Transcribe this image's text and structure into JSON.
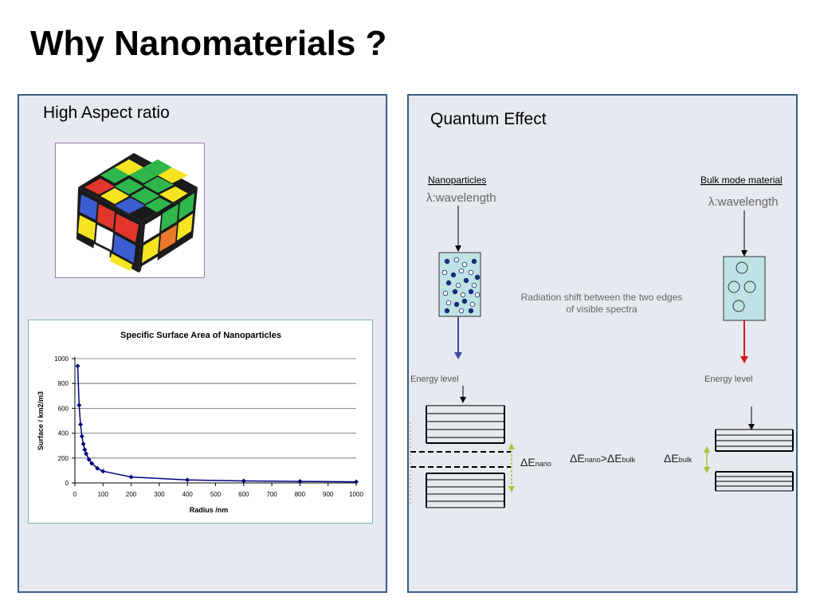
{
  "slide": {
    "title": "Why Nanomaterials  ?"
  },
  "left_panel": {
    "heading": "High Aspect ratio"
  },
  "chart_data": {
    "type": "line",
    "title": "Specific Surface Area of Nanoparticles",
    "xlabel": "Radius /nm",
    "ylabel": "Surface / km2/m3",
    "xlim": [
      0,
      1000
    ],
    "ylim": [
      0,
      1000
    ],
    "xticks": [
      "0",
      "100",
      "200",
      "300",
      "400",
      "500",
      "600",
      "700",
      "800",
      "900",
      "1000"
    ],
    "yticks": [
      "0",
      "200",
      "400",
      "600",
      "800",
      "1000"
    ],
    "grid": "horizontal",
    "legend": "none",
    "series": [
      {
        "color": "#000080",
        "x": [
          10,
          15,
          20,
          25,
          30,
          35,
          40,
          50,
          60,
          80,
          100,
          200,
          400,
          600,
          800,
          1000
        ],
        "y": [
          940,
          625,
          470,
          375,
          313,
          268,
          235,
          188,
          157,
          117,
          94,
          47,
          24,
          16,
          12,
          9
        ]
      }
    ]
  },
  "right_panel": {
    "heading": "Quantum Effect",
    "nano_label": "Nanoparticles",
    "bulk_label": "Bulk mode material",
    "nano_wavelength": "λ:wavelength",
    "bulk_wavelength": "λ:wavelength",
    "shift_line1": "Radiation shift between the two edges",
    "shift_line2": "of visible spectra",
    "energy_left": "Energy level",
    "energy_right": "Energy level",
    "delta_symbol": "ΔE",
    "sub_nano": "nano",
    "sub_bulk": "bulk",
    "gt": ">"
  },
  "colors": {
    "panel_bg": "#e6e9ef",
    "panel_border": "#3c5c88",
    "box_fill": "#bfe3e5",
    "dark_dot": "#1c2a78",
    "nano_arrow": "#3a4a9c",
    "bulk_arrow": "#d21a1a",
    "delta_arrow": "#a8c43a"
  }
}
